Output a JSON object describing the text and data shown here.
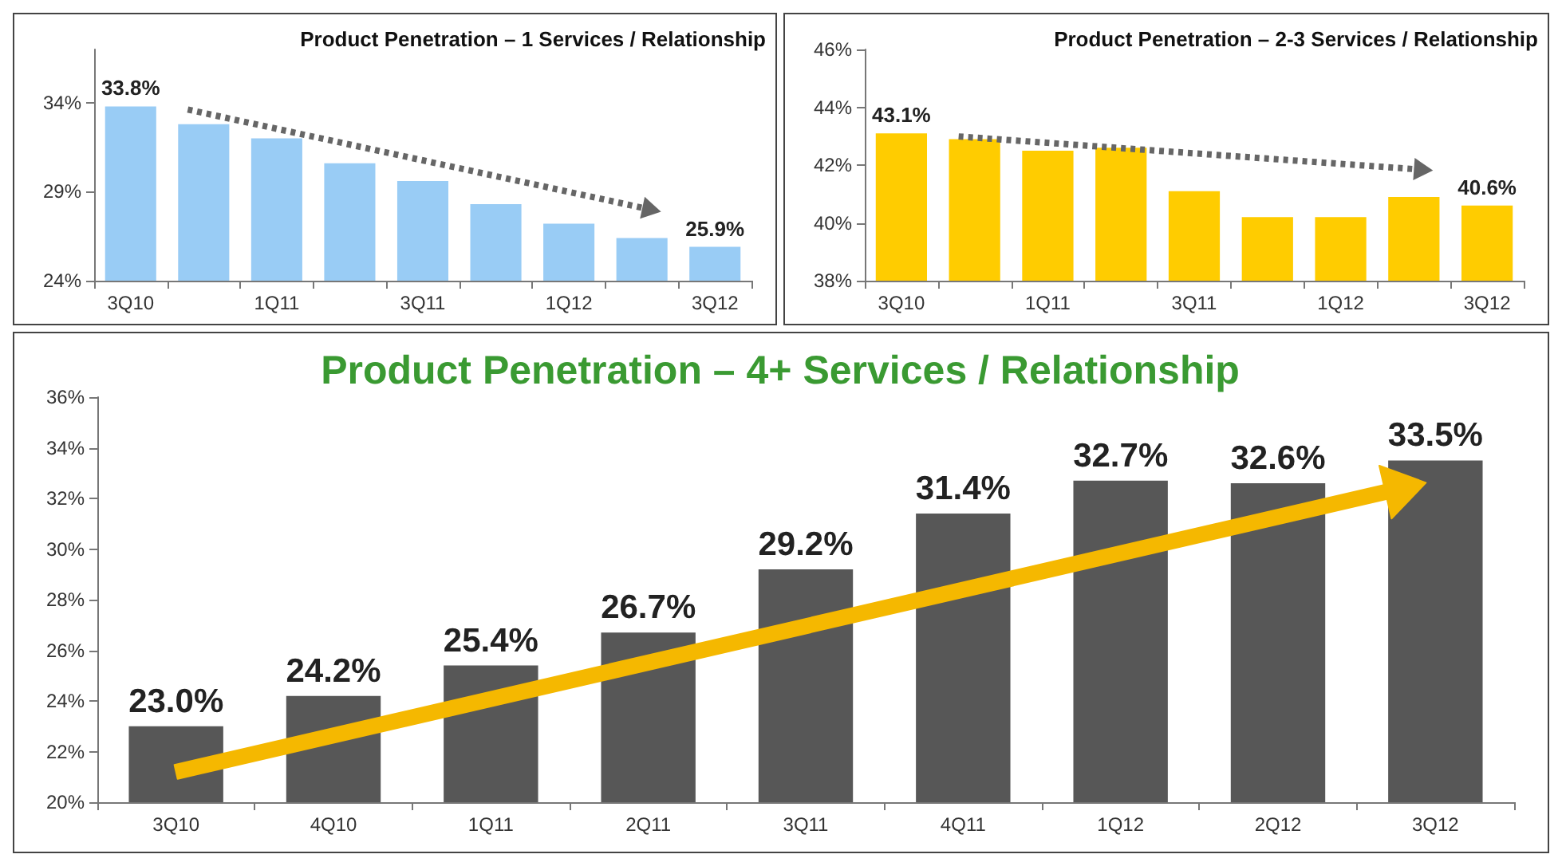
{
  "chart_data": [
    {
      "type": "bar",
      "title": "Product Penetration – 1 Services / Relationship",
      "categories": [
        "3Q10",
        null,
        "1Q11",
        null,
        "3Q11",
        null,
        "1Q12",
        null,
        "3Q12"
      ],
      "color": "#99ccf5",
      "values": [
        33.8,
        32.8,
        32.0,
        30.6,
        29.6,
        28.3,
        27.2,
        26.4,
        25.9
      ],
      "value_labels": [
        "33.8%",
        null,
        null,
        null,
        null,
        null,
        null,
        null,
        "25.9%"
      ],
      "ylim": [
        24,
        37
      ],
      "yticks": [
        {
          "value": 24,
          "label": "24%"
        },
        {
          "value": 29,
          "label": "29%"
        },
        {
          "value": 34,
          "label": "34%"
        }
      ]
    },
    {
      "type": "bar",
      "title": "Product Penetration – 2-3 Services / Relationship",
      "categories": [
        "3Q10",
        null,
        "1Q11",
        null,
        "3Q11",
        null,
        "1Q12",
        null,
        "3Q12"
      ],
      "color": "#ffcc00",
      "values": [
        43.1,
        42.9,
        42.5,
        42.6,
        41.1,
        40.2,
        40.2,
        40.9,
        40.6
      ],
      "value_labels": [
        "43.1%",
        null,
        null,
        null,
        null,
        null,
        null,
        null,
        "40.6%"
      ],
      "ylim": [
        38,
        46
      ],
      "yticks": [
        {
          "value": 38,
          "label": "38%"
        },
        {
          "value": 40,
          "label": "40%"
        },
        {
          "value": 42,
          "label": "42%"
        },
        {
          "value": 44,
          "label": "44%"
        },
        {
          "value": 46,
          "label": "46%"
        }
      ]
    },
    {
      "type": "bar",
      "title": "Product Penetration – 4+ Services / Relationship",
      "categories": [
        "3Q10",
        "4Q10",
        "1Q11",
        "2Q11",
        "3Q11",
        "4Q11",
        "1Q12",
        "2Q12",
        "3Q12"
      ],
      "color": "#575757",
      "values": [
        23.0,
        24.2,
        25.4,
        26.7,
        29.2,
        31.4,
        32.7,
        32.6,
        33.5
      ],
      "value_labels": [
        "23.0%",
        "24.2%",
        "25.4%",
        "26.7%",
        "29.2%",
        "31.4%",
        "32.7%",
        "32.6%",
        "33.5%"
      ],
      "ylim": [
        20,
        36
      ],
      "yticks": [
        {
          "value": 20,
          "label": "20%"
        },
        {
          "value": 22,
          "label": "22%"
        },
        {
          "value": 24,
          "label": "24%"
        },
        {
          "value": 26,
          "label": "26%"
        },
        {
          "value": 28,
          "label": "28%"
        },
        {
          "value": 30,
          "label": "30%"
        },
        {
          "value": 32,
          "label": "32%"
        },
        {
          "value": 34,
          "label": "34%"
        },
        {
          "value": 36,
          "label": "36%"
        }
      ]
    }
  ]
}
